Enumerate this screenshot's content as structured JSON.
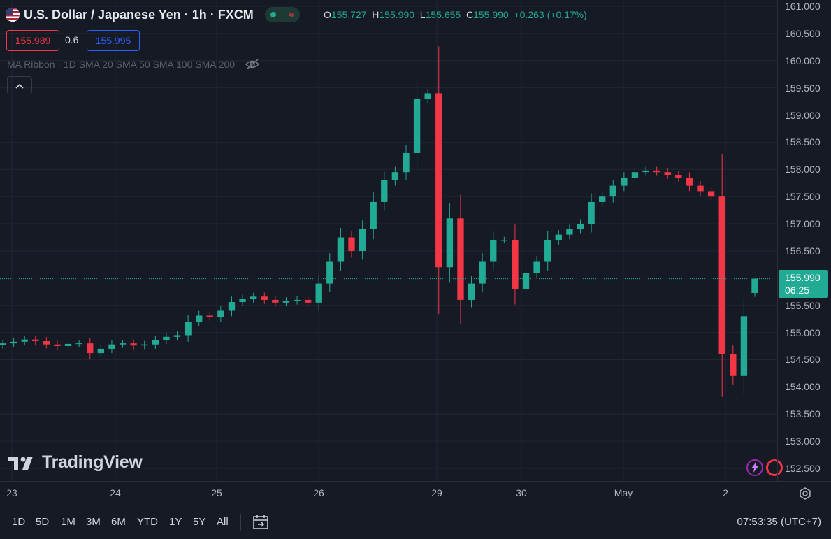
{
  "header": {
    "symbol_title": "U.S. Dollar / Japanese Yen · 1h · FXCM",
    "ohlc": {
      "o_label": "O",
      "o_value": "155.727",
      "h_label": "H",
      "h_value": "155.990",
      "l_label": "L",
      "l_value": "155.655",
      "c_label": "C",
      "c_value": "155.990",
      "change": "+0.263 (+0.17%)"
    },
    "sell_price": "155.989",
    "spread": "0.6",
    "buy_price": "155.995",
    "indicator_label": "MA Ribbon · 1D SMA 20 SMA 50 SMA 100 SMA 200"
  },
  "colors": {
    "up": "#22ab94",
    "down": "#f23645",
    "background": "#161a25",
    "grid": "#232632",
    "accent_blue": "#2962ff"
  },
  "icons": [
    "us-flag-icon",
    "eye-slash-icon",
    "chevron-up-icon",
    "settings-icon",
    "date-range-icon",
    "lightning-icon",
    "tradingview-logo"
  ],
  "logo_text": "TradingView",
  "last_price": {
    "price": "155.990",
    "countdown": "06:25"
  },
  "price_axis": {
    "labels": [
      "161.000",
      "160.500",
      "160.000",
      "159.500",
      "159.000",
      "158.500",
      "158.000",
      "157.500",
      "157.000",
      "156.500",
      "156.000",
      "155.500",
      "155.000",
      "154.500",
      "154.000",
      "153.500",
      "153.000",
      "152.500"
    ]
  },
  "time_axis": {
    "labels": [
      "23",
      "24",
      "25",
      "26",
      "29",
      "30",
      "May",
      "2"
    ]
  },
  "bottom_bar": {
    "ranges": [
      "1D",
      "5D",
      "1M",
      "3M",
      "6M",
      "YTD",
      "1Y",
      "5Y",
      "All"
    ],
    "clock": "07:53:35 (UTC+7)"
  },
  "chart_data": {
    "type": "candlestick",
    "title": "U.S. Dollar / Japanese Yen · 1h · FXCM",
    "ylim": [
      152.3,
      161.1
    ],
    "x_labels": [
      "23",
      "24",
      "25",
      "26",
      "29",
      "30",
      "May",
      "2"
    ],
    "points": [
      [
        "23",
        154.8
      ],
      [
        "23",
        154.83
      ],
      [
        "23",
        154.87
      ],
      [
        "23",
        154.84
      ],
      [
        "23",
        154.78
      ],
      [
        "23",
        154.75
      ],
      [
        "23",
        154.79
      ],
      [
        "23",
        154.8
      ],
      [
        "24",
        154.62
      ],
      [
        "24",
        154.7
      ],
      [
        "24",
        154.78
      ],
      [
        "24",
        154.8
      ],
      [
        "24",
        154.76
      ],
      [
        "24",
        154.78
      ],
      [
        "24",
        154.86
      ],
      [
        "24",
        154.92
      ],
      [
        "24",
        154.95
      ],
      [
        "25",
        155.2
      ],
      [
        "25",
        155.31
      ],
      [
        "25",
        155.28
      ],
      [
        "25",
        155.4
      ],
      [
        "25",
        155.56
      ],
      [
        "25",
        155.62
      ],
      [
        "25",
        155.66
      ],
      [
        "25",
        155.6
      ],
      [
        "25",
        155.55
      ],
      [
        "25",
        155.58
      ],
      [
        "25",
        155.6
      ],
      [
        "25",
        155.55
      ],
      [
        "26",
        155.9
      ],
      [
        "26",
        156.3
      ],
      [
        "26",
        156.75
      ],
      [
        "26",
        156.5
      ],
      [
        "26",
        156.9
      ],
      [
        "26",
        157.4
      ],
      [
        "26",
        157.8
      ],
      [
        "26",
        157.95
      ],
      [
        "29",
        158.3
      ],
      [
        "29",
        159.3
      ],
      [
        "29",
        159.4
      ],
      [
        "29",
        156.2
      ],
      [
        "29",
        157.1
      ],
      [
        "29",
        155.6
      ],
      [
        "29",
        155.9
      ],
      [
        "29",
        156.3
      ],
      [
        "29",
        156.7
      ],
      [
        "30",
        156.7
      ],
      [
        "30",
        155.8
      ],
      [
        "30",
        156.1
      ],
      [
        "30",
        156.3
      ],
      [
        "30",
        156.7
      ],
      [
        "30",
        156.8
      ],
      [
        "30",
        156.9
      ],
      [
        "30",
        157.0
      ],
      [
        "30",
        157.4
      ],
      [
        "30",
        157.5
      ],
      [
        "May",
        157.7
      ],
      [
        "May",
        157.85
      ],
      [
        "May",
        157.95
      ],
      [
        "May",
        157.98
      ],
      [
        "May",
        157.95
      ],
      [
        "May",
        157.9
      ],
      [
        "May",
        157.85
      ],
      [
        "May",
        157.7
      ],
      [
        "May",
        157.6
      ],
      [
        "2",
        157.5
      ],
      [
        "2",
        154.6
      ],
      [
        "2",
        154.2
      ],
      [
        "2",
        155.3
      ],
      [
        "2",
        155.99
      ]
    ]
  }
}
